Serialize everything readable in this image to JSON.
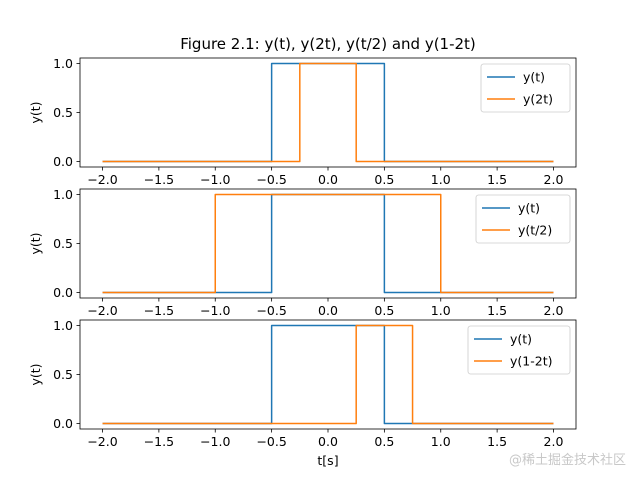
{
  "figure": {
    "title": "Figure 2.1: y(t), y(2t), y(t/2) and y(1-2t)",
    "watermark": "@稀土掘金技术社区"
  },
  "chart_data": [
    {
      "type": "line",
      "title": "Figure 2.1: y(t), y(2t), y(t/2) and y(1-2t)",
      "xlabel": "",
      "ylabel": "y(t)",
      "xlim": [
        -2.0,
        2.0
      ],
      "ylim": [
        0.0,
        1.0
      ],
      "xticks": [
        "−2.0",
        "−1.5",
        "−1.0",
        "−0.5",
        "0.0",
        "0.5",
        "1.0",
        "1.5",
        "2.0"
      ],
      "yticks": [
        "0.0",
        "0.5",
        "1.0"
      ],
      "legend": "upper right",
      "series": [
        {
          "name": "y(t)",
          "color": "#1f77b4",
          "x": [
            -2.0,
            -0.5,
            -0.5,
            0.5,
            0.5,
            2.0
          ],
          "y": [
            0,
            0,
            1,
            1,
            0,
            0
          ]
        },
        {
          "name": "y(2t)",
          "color": "#ff7f0e",
          "x": [
            -2.0,
            -0.25,
            -0.25,
            0.25,
            0.25,
            2.0
          ],
          "y": [
            0,
            0,
            1,
            1,
            0,
            0
          ]
        }
      ]
    },
    {
      "type": "line",
      "xlabel": "",
      "ylabel": "y(t)",
      "xlim": [
        -2.0,
        2.0
      ],
      "ylim": [
        0.0,
        1.0
      ],
      "xticks": [
        "−2.0",
        "−1.5",
        "−1.0",
        "−0.5",
        "0.0",
        "0.5",
        "1.0",
        "1.5",
        "2.0"
      ],
      "yticks": [
        "0.0",
        "0.5",
        "1.0"
      ],
      "legend": "upper right",
      "series": [
        {
          "name": "y(t)",
          "color": "#1f77b4",
          "x": [
            -2.0,
            -0.5,
            -0.5,
            0.5,
            0.5,
            2.0
          ],
          "y": [
            0,
            0,
            1,
            1,
            0,
            0
          ]
        },
        {
          "name": "y(t/2)",
          "color": "#ff7f0e",
          "x": [
            -2.0,
            -1.0,
            -1.0,
            1.0,
            1.0,
            2.0
          ],
          "y": [
            0,
            0,
            1,
            1,
            0,
            0
          ]
        }
      ]
    },
    {
      "type": "line",
      "xlabel": "t[s]",
      "ylabel": "y(t)",
      "xlim": [
        -2.0,
        2.0
      ],
      "ylim": [
        0.0,
        1.0
      ],
      "xticks": [
        "−2.0",
        "−1.5",
        "−1.0",
        "−0.5",
        "0.0",
        "0.5",
        "1.0",
        "1.5",
        "2.0"
      ],
      "yticks": [
        "0.0",
        "0.5",
        "1.0"
      ],
      "legend": "upper right",
      "series": [
        {
          "name": "y(t)",
          "color": "#1f77b4",
          "x": [
            -2.0,
            -0.5,
            -0.5,
            0.5,
            0.5,
            2.0
          ],
          "y": [
            0,
            0,
            1,
            1,
            0,
            0
          ]
        },
        {
          "name": "y(1-2t)",
          "color": "#ff7f0e",
          "x": [
            -2.0,
            0.25,
            0.25,
            0.75,
            0.75,
            2.0
          ],
          "y": [
            0,
            0,
            1,
            1,
            0,
            0
          ]
        }
      ]
    }
  ]
}
